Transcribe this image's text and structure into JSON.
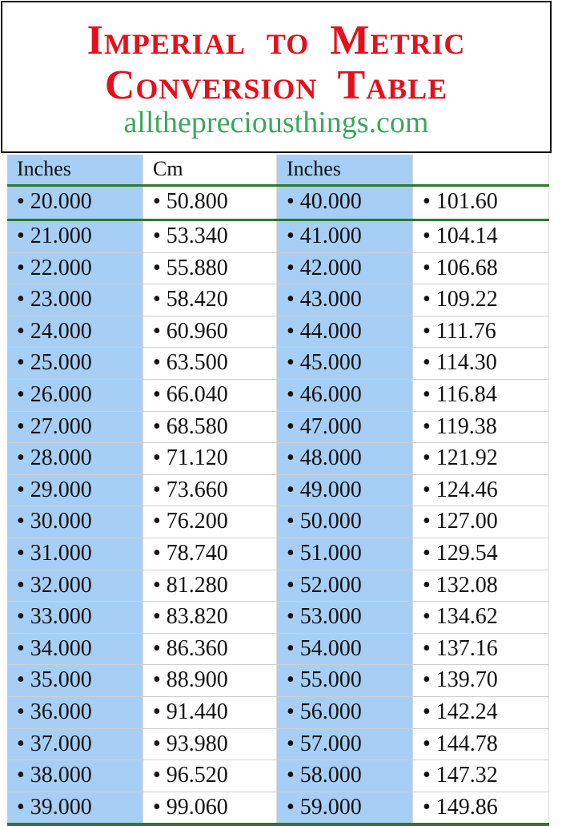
{
  "title": {
    "line1": "Imperial to Metric",
    "line2": "Conversion Table",
    "site": "alltheprecious things.com"
  },
  "colors": {
    "title": "#e4101c",
    "site": "#3aa85a",
    "inches_column": "#a7cff5",
    "rule": "#2a7a2a"
  },
  "table": {
    "headers": [
      "Inches",
      "Cm",
      "Inches",
      ""
    ],
    "bullet": "•",
    "rows": [
      [
        "20.000",
        "50.800",
        "40.000",
        "101.60"
      ],
      [
        "21.000",
        "53.340",
        "41.000",
        "104.14"
      ],
      [
        "22.000",
        "55.880",
        "42.000",
        "106.68"
      ],
      [
        "23.000",
        "58.420",
        "43.000",
        "109.22"
      ],
      [
        "24.000",
        "60.960",
        "44.000",
        "111.76"
      ],
      [
        "25.000",
        "63.500",
        "45.000",
        "114.30"
      ],
      [
        "26.000",
        "66.040",
        "46.000",
        "116.84"
      ],
      [
        "27.000",
        "68.580",
        "47.000",
        "119.38"
      ],
      [
        "28.000",
        "71.120",
        "48.000",
        "121.92"
      ],
      [
        "29.000",
        "73.660",
        "49.000",
        "124.46"
      ],
      [
        "30.000",
        "76.200",
        "50.000",
        "127.00"
      ],
      [
        "31.000",
        "78.740",
        "51.000",
        "129.54"
      ],
      [
        "32.000",
        "81.280",
        "52.000",
        "132.08"
      ],
      [
        "33.000",
        "83.820",
        "53.000",
        "134.62"
      ],
      [
        "34.000",
        "86.360",
        "54.000",
        "137.16"
      ],
      [
        "35.000",
        "88.900",
        "55.000",
        "139.70"
      ],
      [
        "36.000",
        "91.440",
        "56.000",
        "142.24"
      ],
      [
        "37.000",
        "93.980",
        "57.000",
        "144.78"
      ],
      [
        "38.000",
        "96.520",
        "58.000",
        "147.32"
      ],
      [
        "39.000",
        "99.060",
        "59.000",
        "149.86"
      ]
    ]
  }
}
